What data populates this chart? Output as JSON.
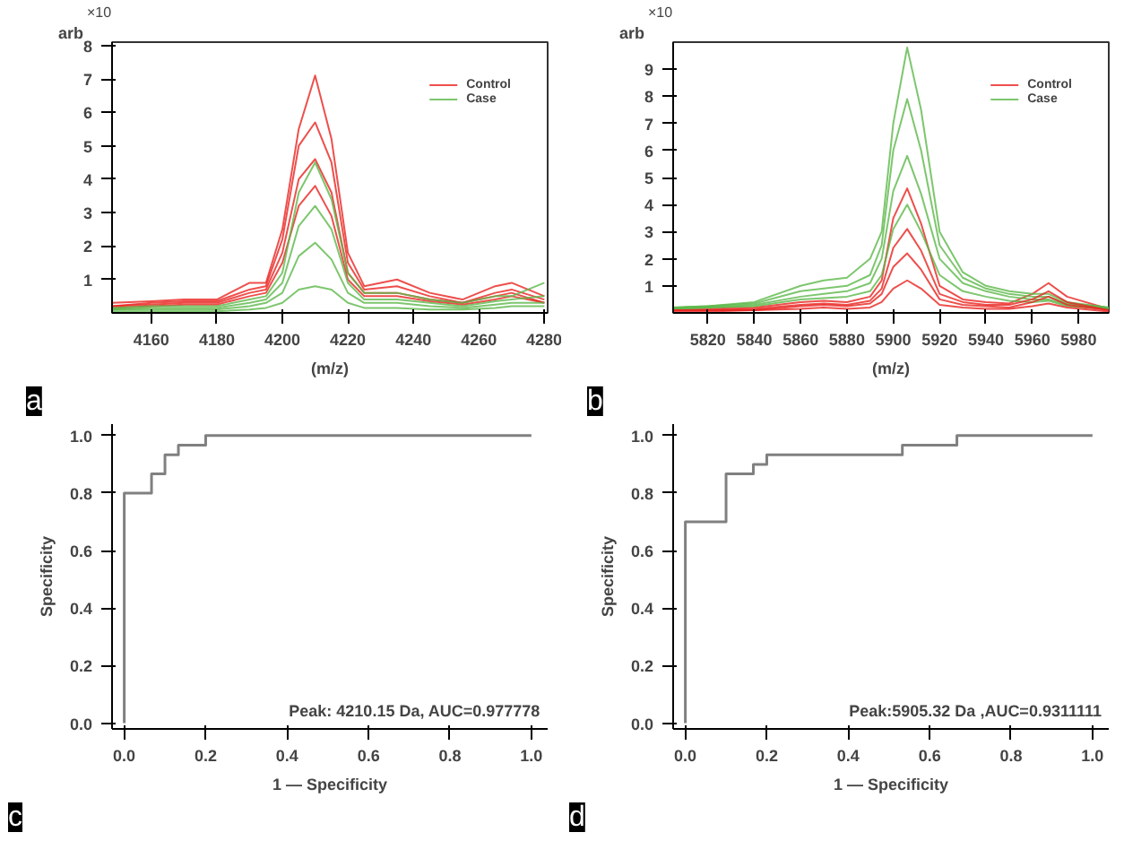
{
  "chart_data": [
    {
      "type": "line",
      "ylabel": "arb",
      "xlabel": "(m/z)",
      "annotations": [
        "a",
        "×10"
      ],
      "xlim": [
        4148,
        4281
      ],
      "xticks": [
        4160,
        4180,
        4200,
        4220,
        4240,
        4260,
        4280
      ],
      "ylim": [
        0,
        8.1
      ],
      "yticks": [
        1,
        2,
        3,
        4,
        5,
        6,
        7,
        8
      ],
      "legend": "top right",
      "grid": false,
      "x": [
        4148,
        4160,
        4170,
        4180,
        4190,
        4195,
        4200,
        4205,
        4210,
        4215,
        4220,
        4225,
        4235,
        4245,
        4255,
        4265,
        4270,
        4280
      ],
      "series": [
        {
          "name": "Control",
          "color": "#e8231f",
          "values": [
            0.3,
            0.35,
            0.4,
            0.4,
            0.9,
            0.9,
            2.5,
            5.5,
            7.1,
            5.2,
            1.8,
            0.8,
            1.0,
            0.6,
            0.4,
            0.8,
            0.9,
            0.5
          ]
        },
        {
          "color": "#e8231f",
          "values": [
            0.2,
            0.3,
            0.35,
            0.35,
            0.7,
            0.8,
            2.2,
            5.0,
            5.7,
            4.5,
            1.5,
            0.7,
            0.8,
            0.5,
            0.3,
            0.6,
            0.7,
            0.4
          ]
        },
        {
          "color": "#e8231f",
          "values": [
            0.2,
            0.25,
            0.3,
            0.3,
            0.6,
            0.7,
            1.8,
            4.0,
            4.6,
            3.6,
            1.2,
            0.6,
            0.6,
            0.4,
            0.3,
            0.5,
            0.6,
            0.3
          ]
        },
        {
          "color": "#e8231f",
          "values": [
            0.15,
            0.2,
            0.25,
            0.25,
            0.5,
            0.6,
            1.5,
            3.2,
            3.8,
            2.9,
            1.0,
            0.5,
            0.5,
            0.35,
            0.25,
            0.4,
            0.5,
            0.3
          ]
        },
        {
          "name": "Case",
          "color": "#5cb84a",
          "values": [
            0.15,
            0.2,
            0.2,
            0.2,
            0.4,
            0.5,
            1.2,
            3.6,
            4.5,
            3.4,
            1.2,
            0.6,
            0.6,
            0.4,
            0.3,
            0.5,
            0.5,
            0.9
          ]
        },
        {
          "color": "#5cb84a",
          "values": [
            0.1,
            0.15,
            0.15,
            0.15,
            0.3,
            0.4,
            0.9,
            2.6,
            3.2,
            2.5,
            0.9,
            0.4,
            0.4,
            0.3,
            0.2,
            0.35,
            0.4,
            0.5
          ]
        },
        {
          "color": "#5cb84a",
          "values": [
            0.1,
            0.1,
            0.1,
            0.1,
            0.2,
            0.3,
            0.6,
            1.7,
            2.1,
            1.6,
            0.6,
            0.3,
            0.3,
            0.2,
            0.15,
            0.25,
            0.3,
            0.3
          ]
        },
        {
          "color": "#5cb84a",
          "values": [
            0.05,
            0.05,
            0.05,
            0.05,
            0.1,
            0.15,
            0.3,
            0.7,
            0.8,
            0.7,
            0.3,
            0.15,
            0.15,
            0.1,
            0.1,
            0.15,
            0.2,
            0.2
          ]
        }
      ]
    },
    {
      "type": "line",
      "ylabel": "arb",
      "xlabel": "(m/z)",
      "annotations": [
        "b",
        "×10"
      ],
      "xlim": [
        5805,
        5993
      ],
      "xticks": [
        5820,
        5840,
        5860,
        5880,
        5900,
        5920,
        5940,
        5960,
        5980
      ],
      "ylim": [
        0,
        10
      ],
      "yticks": [
        1,
        2,
        3,
        4,
        5,
        6,
        7,
        8,
        9
      ],
      "legend": "top right",
      "grid": false,
      "x": [
        5805,
        5820,
        5840,
        5860,
        5870,
        5880,
        5890,
        5895,
        5900,
        5906,
        5912,
        5920,
        5930,
        5940,
        5950,
        5960,
        5967,
        5975,
        5993
      ],
      "series": [
        {
          "name": "Control",
          "color": "#e8231f",
          "values": [
            0.15,
            0.15,
            0.2,
            0.4,
            0.45,
            0.4,
            0.6,
            1.2,
            3.5,
            4.6,
            3.3,
            1.0,
            0.5,
            0.4,
            0.35,
            0.7,
            1.1,
            0.6,
            0.15
          ]
        },
        {
          "name": "Case",
          "color": "#5cb84a",
          "values": [
            0.2,
            0.25,
            0.4,
            1.0,
            1.2,
            1.3,
            2.0,
            3.0,
            7.0,
            9.8,
            7.5,
            3.0,
            1.5,
            1.0,
            0.8,
            0.7,
            0.7,
            0.4,
            0.2
          ]
        },
        {
          "color": "#5cb84a",
          "values": [
            0.2,
            0.25,
            0.35,
            0.8,
            0.9,
            1.0,
            1.4,
            2.5,
            6.0,
            7.9,
            6.0,
            2.5,
            1.3,
            0.9,
            0.7,
            0.6,
            0.6,
            0.35,
            0.2
          ]
        },
        {
          "color": "#5cb84a",
          "values": [
            0.15,
            0.2,
            0.3,
            0.6,
            0.7,
            0.8,
            1.1,
            2.0,
            4.5,
            5.8,
            4.4,
            2.0,
            1.1,
            0.8,
            0.6,
            0.5,
            0.5,
            0.3,
            0.15
          ]
        },
        {
          "color": "#5cb84a",
          "values": [
            0.15,
            0.2,
            0.25,
            0.5,
            0.55,
            0.6,
            0.8,
            1.4,
            3.1,
            4.0,
            3.0,
            1.4,
            0.8,
            0.6,
            0.45,
            0.4,
            0.45,
            0.25,
            0.15
          ]
        },
        {
          "color": "#e8231f",
          "values": [
            0.1,
            0.1,
            0.15,
            0.3,
            0.35,
            0.3,
            0.45,
            0.9,
            2.4,
            3.1,
            2.3,
            0.7,
            0.4,
            0.3,
            0.3,
            0.5,
            0.8,
            0.4,
            0.1
          ]
        },
        {
          "color": "#e8231f",
          "values": [
            0.1,
            0.1,
            0.1,
            0.25,
            0.3,
            0.25,
            0.35,
            0.7,
            1.7,
            2.2,
            1.6,
            0.5,
            0.3,
            0.25,
            0.2,
            0.4,
            0.6,
            0.3,
            0.1
          ]
        },
        {
          "color": "#e8231f",
          "values": [
            0.05,
            0.05,
            0.1,
            0.15,
            0.2,
            0.15,
            0.2,
            0.4,
            0.9,
            1.2,
            0.9,
            0.3,
            0.2,
            0.15,
            0.15,
            0.25,
            0.35,
            0.2,
            0.05
          ]
        }
      ]
    },
    {
      "type": "step",
      "ylabel": "Specificity",
      "xlabel": "1 — Specificity",
      "annotations": [
        "c",
        "Peak: 4210.15 Da, AUC=0.977778"
      ],
      "xlim": [
        -0.03,
        1.04
      ],
      "ylim": [
        -0.02,
        1.04
      ],
      "grid": false,
      "xticks": [
        {
          "value": 0,
          "label": "0.0"
        },
        {
          "value": 0.2,
          "label": "0.2"
        },
        {
          "value": 0.4,
          "label": "0.4"
        },
        {
          "value": 0.6,
          "label": "0.6"
        },
        {
          "value": 0.8,
          "label": "0.8"
        },
        {
          "value": 1,
          "label": "1.0"
        }
      ],
      "yticks": [
        {
          "value": 0,
          "label": "0.0"
        },
        {
          "value": 0.2,
          "label": "0.2"
        },
        {
          "value": 0.4,
          "label": "0.4"
        },
        {
          "value": 0.6,
          "label": "0.6"
        },
        {
          "value": 0.8,
          "label": "0.8"
        },
        {
          "value": 1,
          "label": "1.0"
        }
      ],
      "x": [
        0,
        0,
        0.067,
        0.1,
        0.133,
        0.2,
        1
      ],
      "series": [
        {
          "color": "#808080",
          "values": [
            0,
            0.8,
            0.867,
            0.933,
            0.967,
            1,
            1
          ]
        }
      ]
    },
    {
      "type": "step",
      "ylabel": "Specificity",
      "xlabel": "1 — Specificity",
      "annotations": [
        "d",
        "Peak:5905.32 Da ,AUC=0.9311111"
      ],
      "xlim": [
        -0.03,
        1.04
      ],
      "ylim": [
        -0.02,
        1.04
      ],
      "grid": false,
      "xticks": [
        {
          "value": 0,
          "label": "0.0"
        },
        {
          "value": 0.2,
          "label": "0.2"
        },
        {
          "value": 0.4,
          "label": "0.4"
        },
        {
          "value": 0.6,
          "label": "0.6"
        },
        {
          "value": 0.8,
          "label": "0.8"
        },
        {
          "value": 1,
          "label": "1.0"
        }
      ],
      "yticks": [
        {
          "value": 0,
          "label": "0.0"
        },
        {
          "value": 0.2,
          "label": "0.2"
        },
        {
          "value": 0.4,
          "label": "0.4"
        },
        {
          "value": 0.6,
          "label": "0.6"
        },
        {
          "value": 0.8,
          "label": "0.8"
        },
        {
          "value": 1,
          "label": "1.0"
        }
      ],
      "x": [
        0,
        0,
        0.1,
        0.167,
        0.2,
        0.533,
        0.667,
        1
      ],
      "series": [
        {
          "color": "#808080",
          "values": [
            0,
            0.7,
            0.867,
            0.9,
            0.933,
            0.967,
            1,
            1
          ]
        }
      ]
    }
  ]
}
